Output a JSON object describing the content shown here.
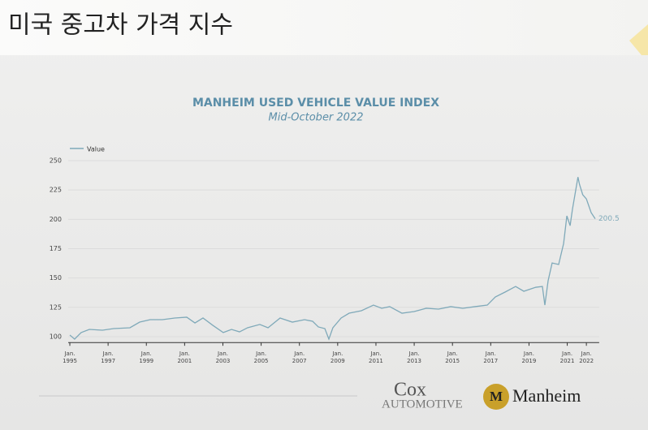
{
  "slide": {
    "title": "미국 중고차 가격 지수",
    "logos": [
      "Cox",
      "AUTOMOTIVE",
      "Manheim"
    ]
  },
  "chart_data": {
    "type": "line",
    "title": "MANHEIM USED VEHICLE VALUE INDEX",
    "subtitle": "Mid-October 2022",
    "x": [
      1995.0,
      1995.25,
      1995.59,
      1996.02,
      1996.7,
      1997.29,
      1998.14,
      1998.65,
      1999.2,
      1999.84,
      2000.48,
      2001.11,
      2001.54,
      2001.96,
      2002.47,
      2003.02,
      2003.45,
      2003.87,
      2004.29,
      2004.93,
      2005.36,
      2005.99,
      2006.63,
      2007.27,
      2007.69,
      2007.99,
      2008.33,
      2008.54,
      2008.75,
      2009.18,
      2009.6,
      2010.24,
      2010.87,
      2011.3,
      2011.72,
      2012.36,
      2013.0,
      2013.63,
      2014.27,
      2014.91,
      2015.54,
      2016.18,
      2016.82,
      2017.24,
      2017.75,
      2018.3,
      2018.73,
      2019.36,
      2019.7,
      2019.83,
      2020.0,
      2020.21,
      2020.55,
      2020.81,
      2020.98,
      2021.15,
      2021.27,
      2021.56,
      2021.64,
      2021.81,
      2022.0,
      2022.25,
      2022.46
    ],
    "series": [
      {
        "name": "Value",
        "color": "#7fa9b9",
        "values": [
          101.4,
          97.9,
          103.5,
          106.2,
          105.5,
          106.9,
          107.6,
          112.4,
          114.5,
          114.5,
          115.9,
          116.6,
          111.7,
          115.9,
          109.7,
          103.5,
          106.2,
          104.1,
          107.6,
          110.4,
          107.6,
          115.9,
          112.4,
          114.5,
          113.1,
          108.3,
          106.9,
          97.9,
          107.6,
          115.9,
          120.0,
          122.1,
          126.9,
          124.2,
          125.6,
          120.0,
          121.4,
          124.2,
          123.5,
          125.6,
          124.2,
          125.6,
          126.9,
          133.8,
          138.0,
          142.8,
          138.7,
          142.1,
          142.8,
          126.9,
          147.7,
          162.8,
          161.5,
          179.4,
          202.9,
          194.6,
          208.4,
          236.0,
          229.8,
          220.9,
          217.4,
          205.7,
          200.5
        ]
      }
    ],
    "xlim": [
      1995,
      2022.5
    ],
    "ylim": [
      95,
      252
    ],
    "yticks": [
      100,
      125,
      150,
      175,
      200,
      225,
      250
    ],
    "xticks": [
      {
        "value": 1995,
        "label": "Jan. 1995"
      },
      {
        "value": 1997,
        "label": "Jan. 1997"
      },
      {
        "value": 1999,
        "label": "Jan. 1999"
      },
      {
        "value": 2001,
        "label": "Jan. 2001"
      },
      {
        "value": 2003,
        "label": "Jan. 2003"
      },
      {
        "value": 2005,
        "label": "Jan. 2005"
      },
      {
        "value": 2007,
        "label": "Jan. 2007"
      },
      {
        "value": 2009,
        "label": "Jan. 2009"
      },
      {
        "value": 2011,
        "label": "Jan. 2011"
      },
      {
        "value": 2013,
        "label": "Jan. 2013"
      },
      {
        "value": 2015,
        "label": "Jan. 2015"
      },
      {
        "value": 2017,
        "label": "Jan. 2017"
      },
      {
        "value": 2019,
        "label": "Jan. 2019"
      },
      {
        "value": 2021,
        "label": "Jan. 2021"
      },
      {
        "value": 2022,
        "label": "Jan. 2022"
      }
    ],
    "grid": true,
    "legend": "top-left"
  }
}
